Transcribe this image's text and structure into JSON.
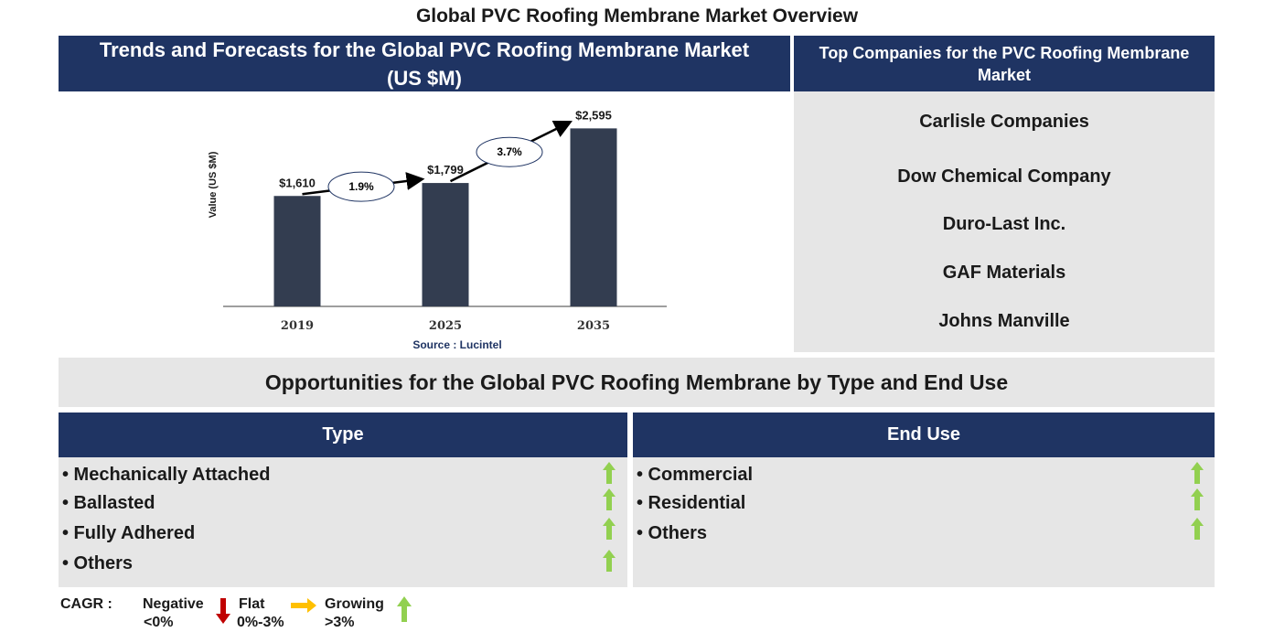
{
  "page_title": "Global PVC Roofing Membrane Market Overview",
  "chart_panel": {
    "header": "Trends and Forecasts for the Global PVC Roofing Membrane Market (US $M)"
  },
  "chart_data": {
    "type": "bar",
    "categories": [
      "2019",
      "2025",
      "2035"
    ],
    "values": [
      1610,
      1799,
      2595
    ],
    "value_labels": [
      "$1,610",
      "$1,799",
      "$2,595"
    ],
    "ylabel": "Value (US $M)",
    "xlabel": "",
    "ylim": [
      0,
      2600
    ],
    "bar_color": "#333d50",
    "grid": false,
    "cagr_annotations": [
      {
        "from": "2019",
        "to": "2025",
        "label": "1.9%"
      },
      {
        "from": "2025",
        "to": "2035",
        "label": "3.7%"
      }
    ],
    "source": "Source : Lucintel"
  },
  "companies": {
    "header": "Top Companies for the PVC Roofing Membrane Market",
    "items": [
      "Carlisle Companies",
      "Dow Chemical Company",
      "Duro-Last Inc.",
      "GAF Materials",
      "Johns Manville"
    ]
  },
  "opportunities": {
    "banner": "Opportunities for the Global PVC Roofing Membrane by Type and End Use",
    "type": {
      "header": "Type",
      "items": [
        "• Mechanically Attached",
        "• Ballasted",
        "• Fully Adhered",
        "• Others"
      ],
      "trend": [
        "growing",
        "growing",
        "growing",
        "growing"
      ]
    },
    "end_use": {
      "header": "End Use",
      "items": [
        "• Commercial",
        "• Residential",
        "• Others"
      ],
      "trend": [
        "growing",
        "growing",
        "growing"
      ]
    }
  },
  "legend": {
    "cagr_label": "CAGR :",
    "negative": {
      "line1": "Negative",
      "line2": "<0%",
      "icon": "down-arrow-icon",
      "color": "#c00000"
    },
    "flat": {
      "line1": "Flat",
      "line2": "0%-3%",
      "icon": "right-arrow-icon",
      "color": "#ffc000"
    },
    "growing": {
      "line1": "Growing",
      "line2": ">3%",
      "icon": "up-arrow-icon",
      "color": "#92d050"
    }
  }
}
